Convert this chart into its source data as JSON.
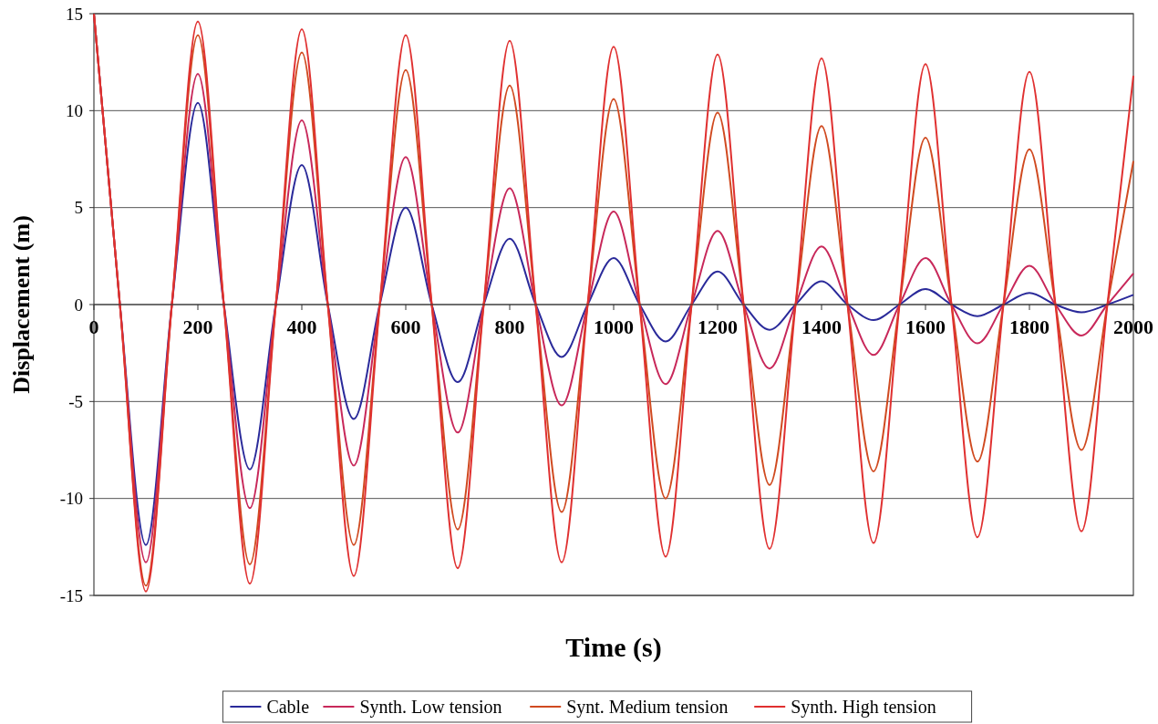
{
  "chart_data": {
    "type": "line",
    "xlabel": "Time (s)",
    "ylabel": "Displacement (m)",
    "x": [
      0,
      50,
      100,
      150,
      200,
      250,
      300,
      350,
      400,
      450,
      500,
      550,
      600,
      650,
      700,
      750,
      800,
      850,
      900,
      950,
      1000,
      1050,
      1100,
      1150,
      1200,
      1250,
      1300,
      1350,
      1400,
      1450,
      1500,
      1550,
      1600,
      1650,
      1700,
      1750,
      1800,
      1850,
      1900,
      1950,
      2000
    ],
    "xlim": [
      0,
      2000
    ],
    "xticks": [
      0,
      200,
      400,
      600,
      800,
      1000,
      1200,
      1400,
      1600,
      1800,
      2000
    ],
    "ylim": [
      -15,
      15
    ],
    "yticks": [
      -15,
      -10,
      -5,
      0,
      5,
      10,
      15
    ],
    "grid": "y",
    "legend": "bottom",
    "marker": "none",
    "line_style": "solid",
    "series": [
      {
        "name": "Cable",
        "color": "#2a2a9a",
        "values": [
          15,
          0,
          -12.4,
          0,
          10.4,
          0,
          -8.5,
          0,
          7.2,
          0,
          -5.9,
          0,
          5.0,
          0,
          -4.0,
          0,
          3.4,
          0,
          -2.7,
          0,
          2.4,
          0,
          -1.9,
          0,
          1.7,
          0,
          -1.3,
          0,
          1.2,
          0,
          -0.8,
          0,
          0.8,
          0,
          -0.6,
          0,
          0.6,
          0,
          -0.4,
          0,
          0.5
        ]
      },
      {
        "name": "Synth. Low tension",
        "color": "#c8285a",
        "values": [
          15,
          0,
          -13.3,
          0,
          11.9,
          0,
          -10.5,
          0,
          9.5,
          0,
          -8.3,
          0,
          7.6,
          0,
          -6.6,
          0,
          6.0,
          0,
          -5.2,
          0,
          4.8,
          0,
          -4.1,
          0,
          3.8,
          0,
          -3.3,
          0,
          3.0,
          0,
          -2.6,
          0,
          2.4,
          0,
          -2.0,
          0,
          2.0,
          0,
          -1.6,
          0,
          1.6
        ]
      },
      {
        "name": "Synt. Medium tension",
        "color": "#d04a20",
        "values": [
          15,
          0,
          -14.5,
          0,
          13.9,
          0,
          -13.4,
          0,
          13.0,
          0,
          -12.4,
          0,
          12.1,
          0,
          -11.6,
          0,
          11.3,
          0,
          -10.7,
          0,
          10.6,
          0,
          -10.0,
          0,
          9.9,
          0,
          -9.3,
          0,
          9.2,
          0,
          -8.6,
          0,
          8.6,
          0,
          -8.1,
          0,
          8.0,
          0,
          -7.5,
          0,
          7.4
        ]
      },
      {
        "name": "Synth. High tension",
        "color": "#e03030",
        "values": [
          15,
          0,
          -14.8,
          0,
          14.6,
          0,
          -14.4,
          0,
          14.2,
          0,
          -14.0,
          0,
          13.9,
          0,
          -13.6,
          0,
          13.6,
          0,
          -13.3,
          0,
          13.3,
          0,
          -13.0,
          0,
          12.9,
          0,
          -12.6,
          0,
          12.7,
          0,
          -12.3,
          0,
          12.4,
          0,
          -12.0,
          0,
          12.0,
          0,
          -11.7,
          0,
          11.8
        ]
      }
    ]
  }
}
